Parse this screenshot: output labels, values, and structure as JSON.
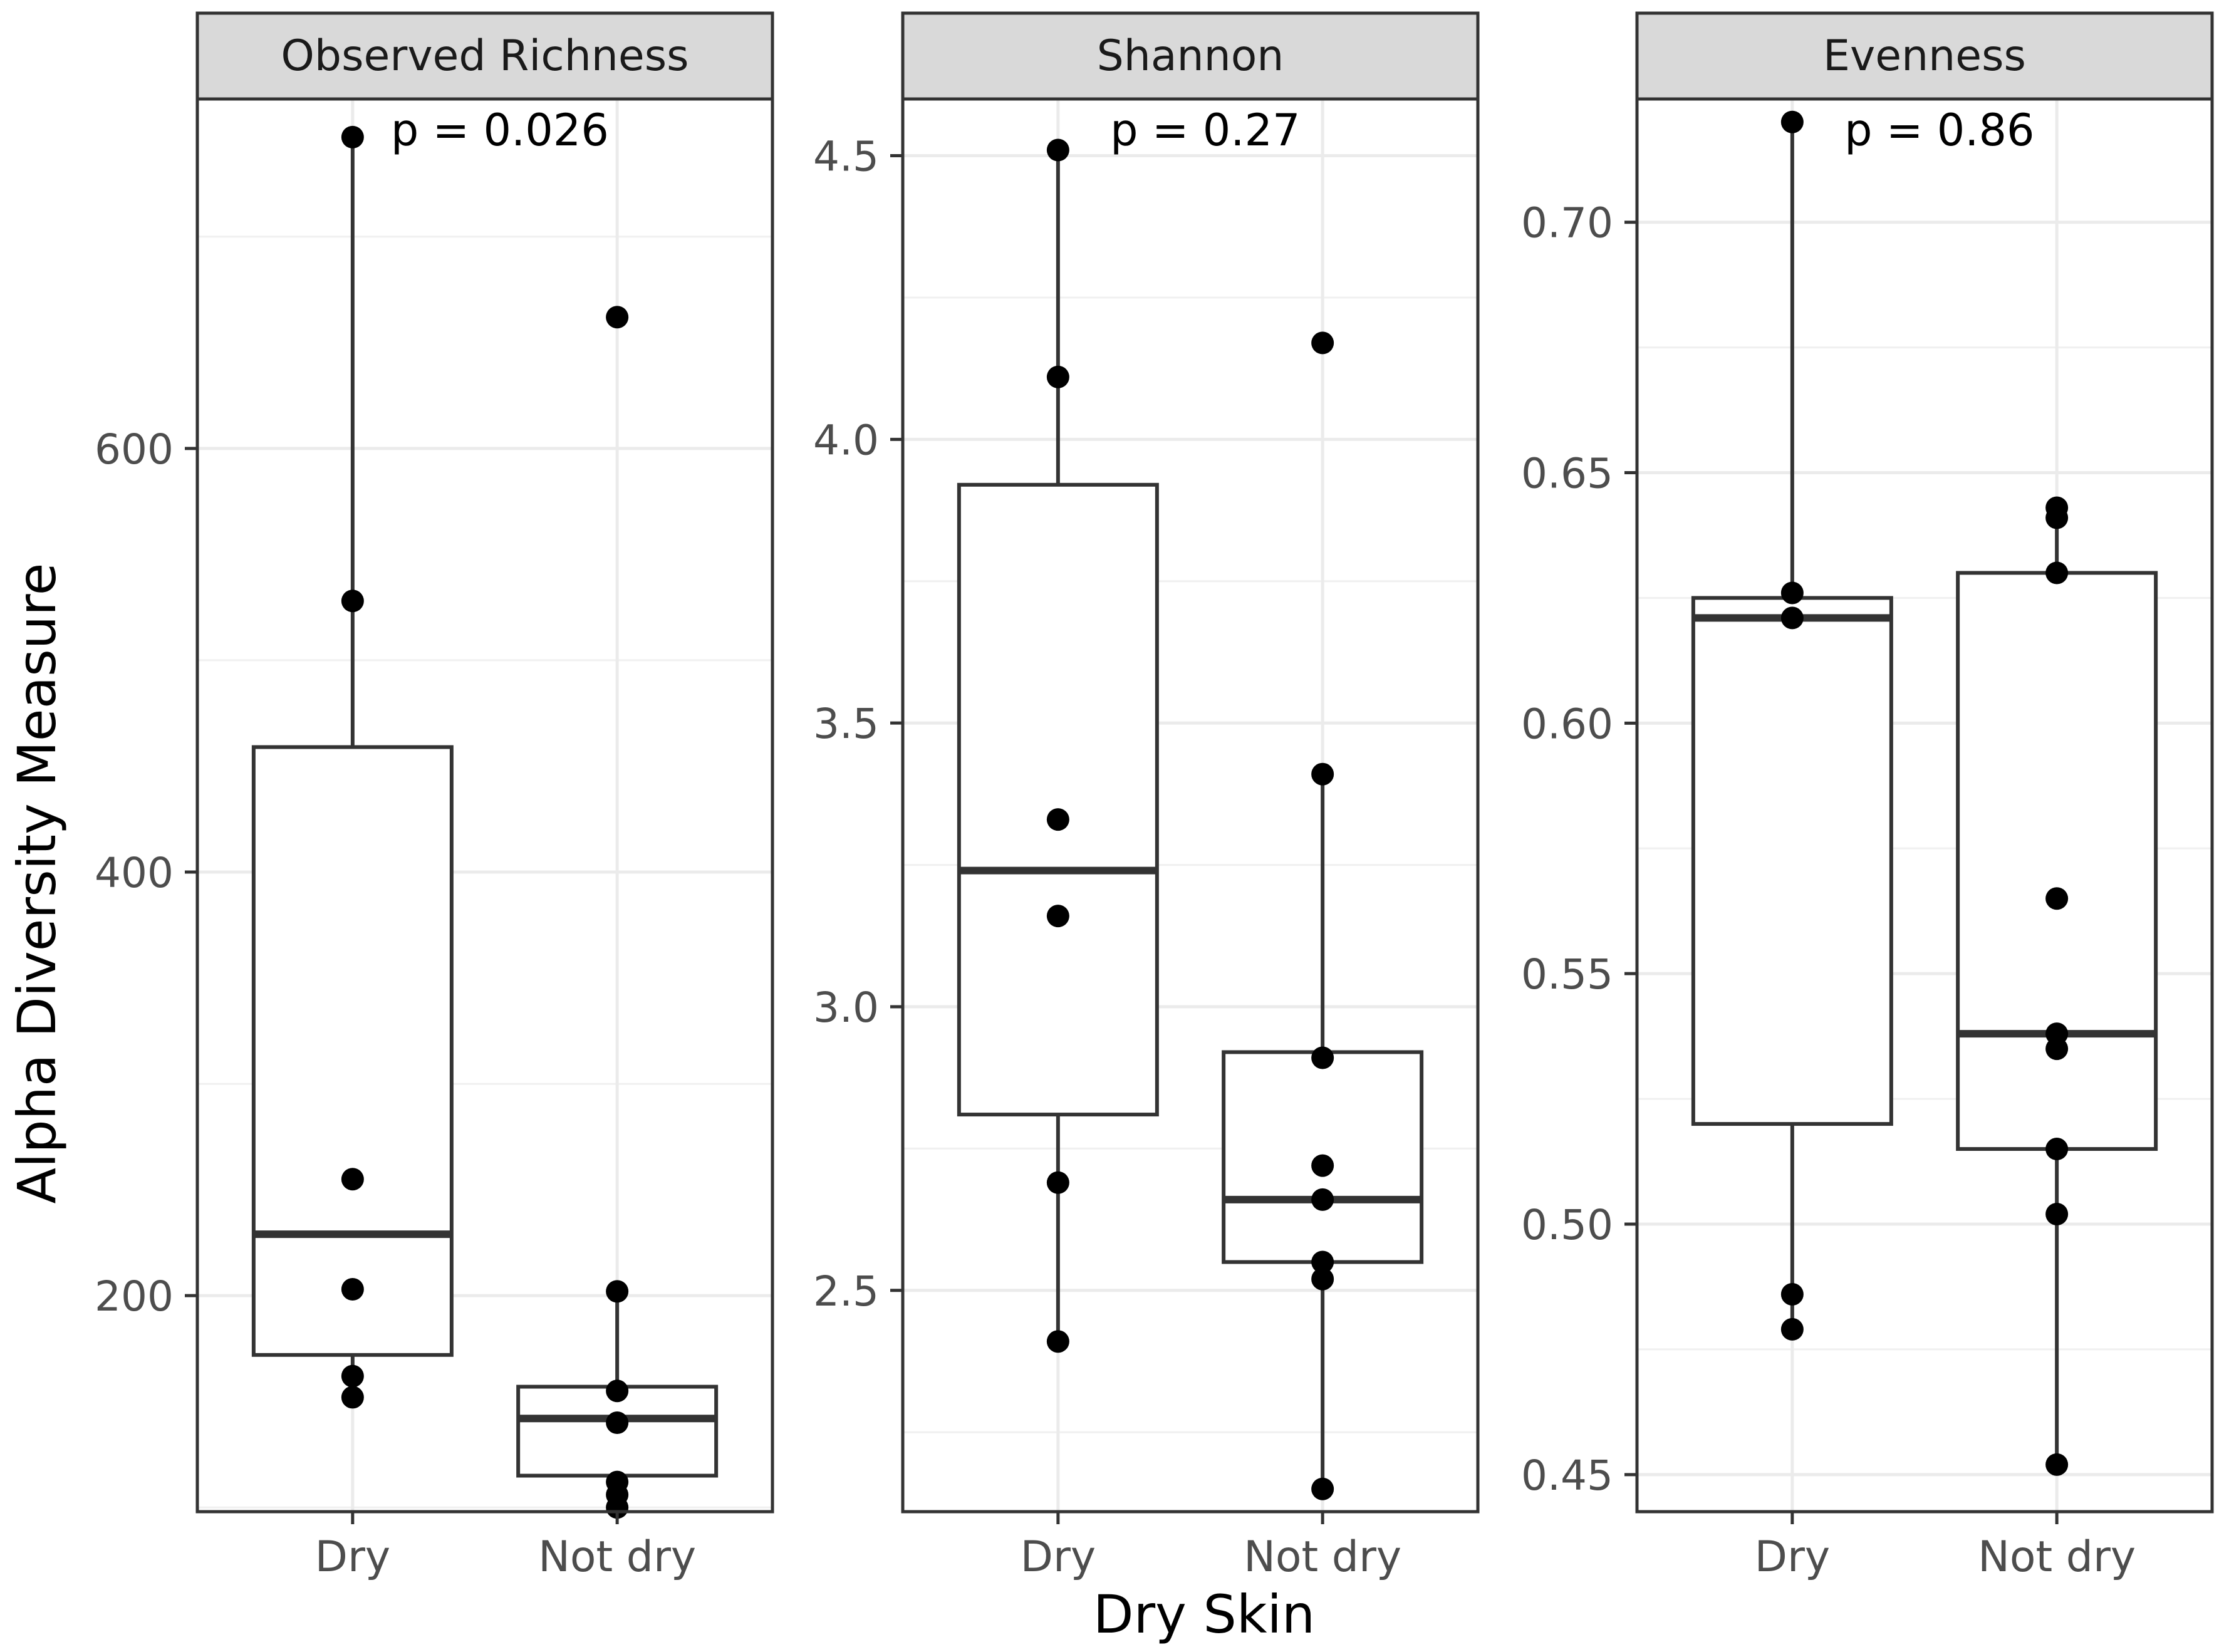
{
  "figure": {
    "xlabel": "Dry Skin",
    "ylabel": "Alpha Diversity Measure"
  },
  "chart_data": [
    {
      "type": "box",
      "title": "Observed Richness",
      "annotation": "p = 0.026",
      "categories": [
        "Dry",
        "Not dry"
      ],
      "ylim": [
        98,
        765
      ],
      "yticks": [
        200,
        400,
        600
      ],
      "ytick_labels": [
        "200",
        "400",
        "600"
      ],
      "boxes": [
        {
          "q1": 172,
          "median": 229,
          "q3": 459,
          "whisker_low": 152,
          "whisker_high": 747
        },
        {
          "q1": 115,
          "median": 142,
          "q3": 157,
          "whisker_low": 100,
          "whisker_high": 202
        }
      ],
      "points": [
        [
          747,
          528,
          255,
          203,
          162,
          152
        ],
        [
          662,
          202,
          155,
          140,
          112,
          106,
          100
        ]
      ]
    },
    {
      "type": "box",
      "title": "Shannon",
      "annotation": "p = 0.27",
      "categories": [
        "Dry",
        "Not dry"
      ],
      "ylim": [
        2.11,
        4.6
      ],
      "yticks": [
        2.5,
        3.0,
        3.5,
        4.0,
        4.5
      ],
      "ytick_labels": [
        "2.5",
        "3.0",
        "3.5",
        "4.0",
        "4.5"
      ],
      "boxes": [
        {
          "q1": 2.81,
          "median": 3.24,
          "q3": 3.92,
          "whisker_low": 2.41,
          "whisker_high": 4.51
        },
        {
          "q1": 2.55,
          "median": 2.66,
          "q3": 2.92,
          "whisker_low": 2.15,
          "whisker_high": 3.41
        }
      ],
      "points": [
        [
          4.51,
          4.11,
          3.33,
          3.16,
          2.69,
          2.41
        ],
        [
          4.17,
          3.41,
          2.91,
          2.72,
          2.66,
          2.55,
          2.52,
          2.15
        ]
      ]
    },
    {
      "type": "box",
      "title": "Evenness",
      "annotation": "p = 0.86",
      "categories": [
        "Dry",
        "Not dry"
      ],
      "ylim": [
        0.4426,
        0.7246
      ],
      "yticks": [
        0.45,
        0.5,
        0.55,
        0.6,
        0.65,
        0.7
      ],
      "ytick_labels": [
        "0.45",
        "0.50",
        "0.55",
        "0.60",
        "0.65",
        "0.70"
      ],
      "boxes": [
        {
          "q1": 0.52,
          "median": 0.621,
          "q3": 0.625,
          "whisker_low": 0.479,
          "whisker_high": 0.72
        },
        {
          "q1": 0.515,
          "median": 0.538,
          "q3": 0.63,
          "whisker_low": 0.452,
          "whisker_high": 0.643
        }
      ],
      "points": [
        [
          0.72,
          0.626,
          0.621,
          0.486,
          0.479
        ],
        [
          0.643,
          0.641,
          0.63,
          0.565,
          0.538,
          0.535,
          0.515,
          0.502,
          0.452
        ]
      ]
    }
  ]
}
